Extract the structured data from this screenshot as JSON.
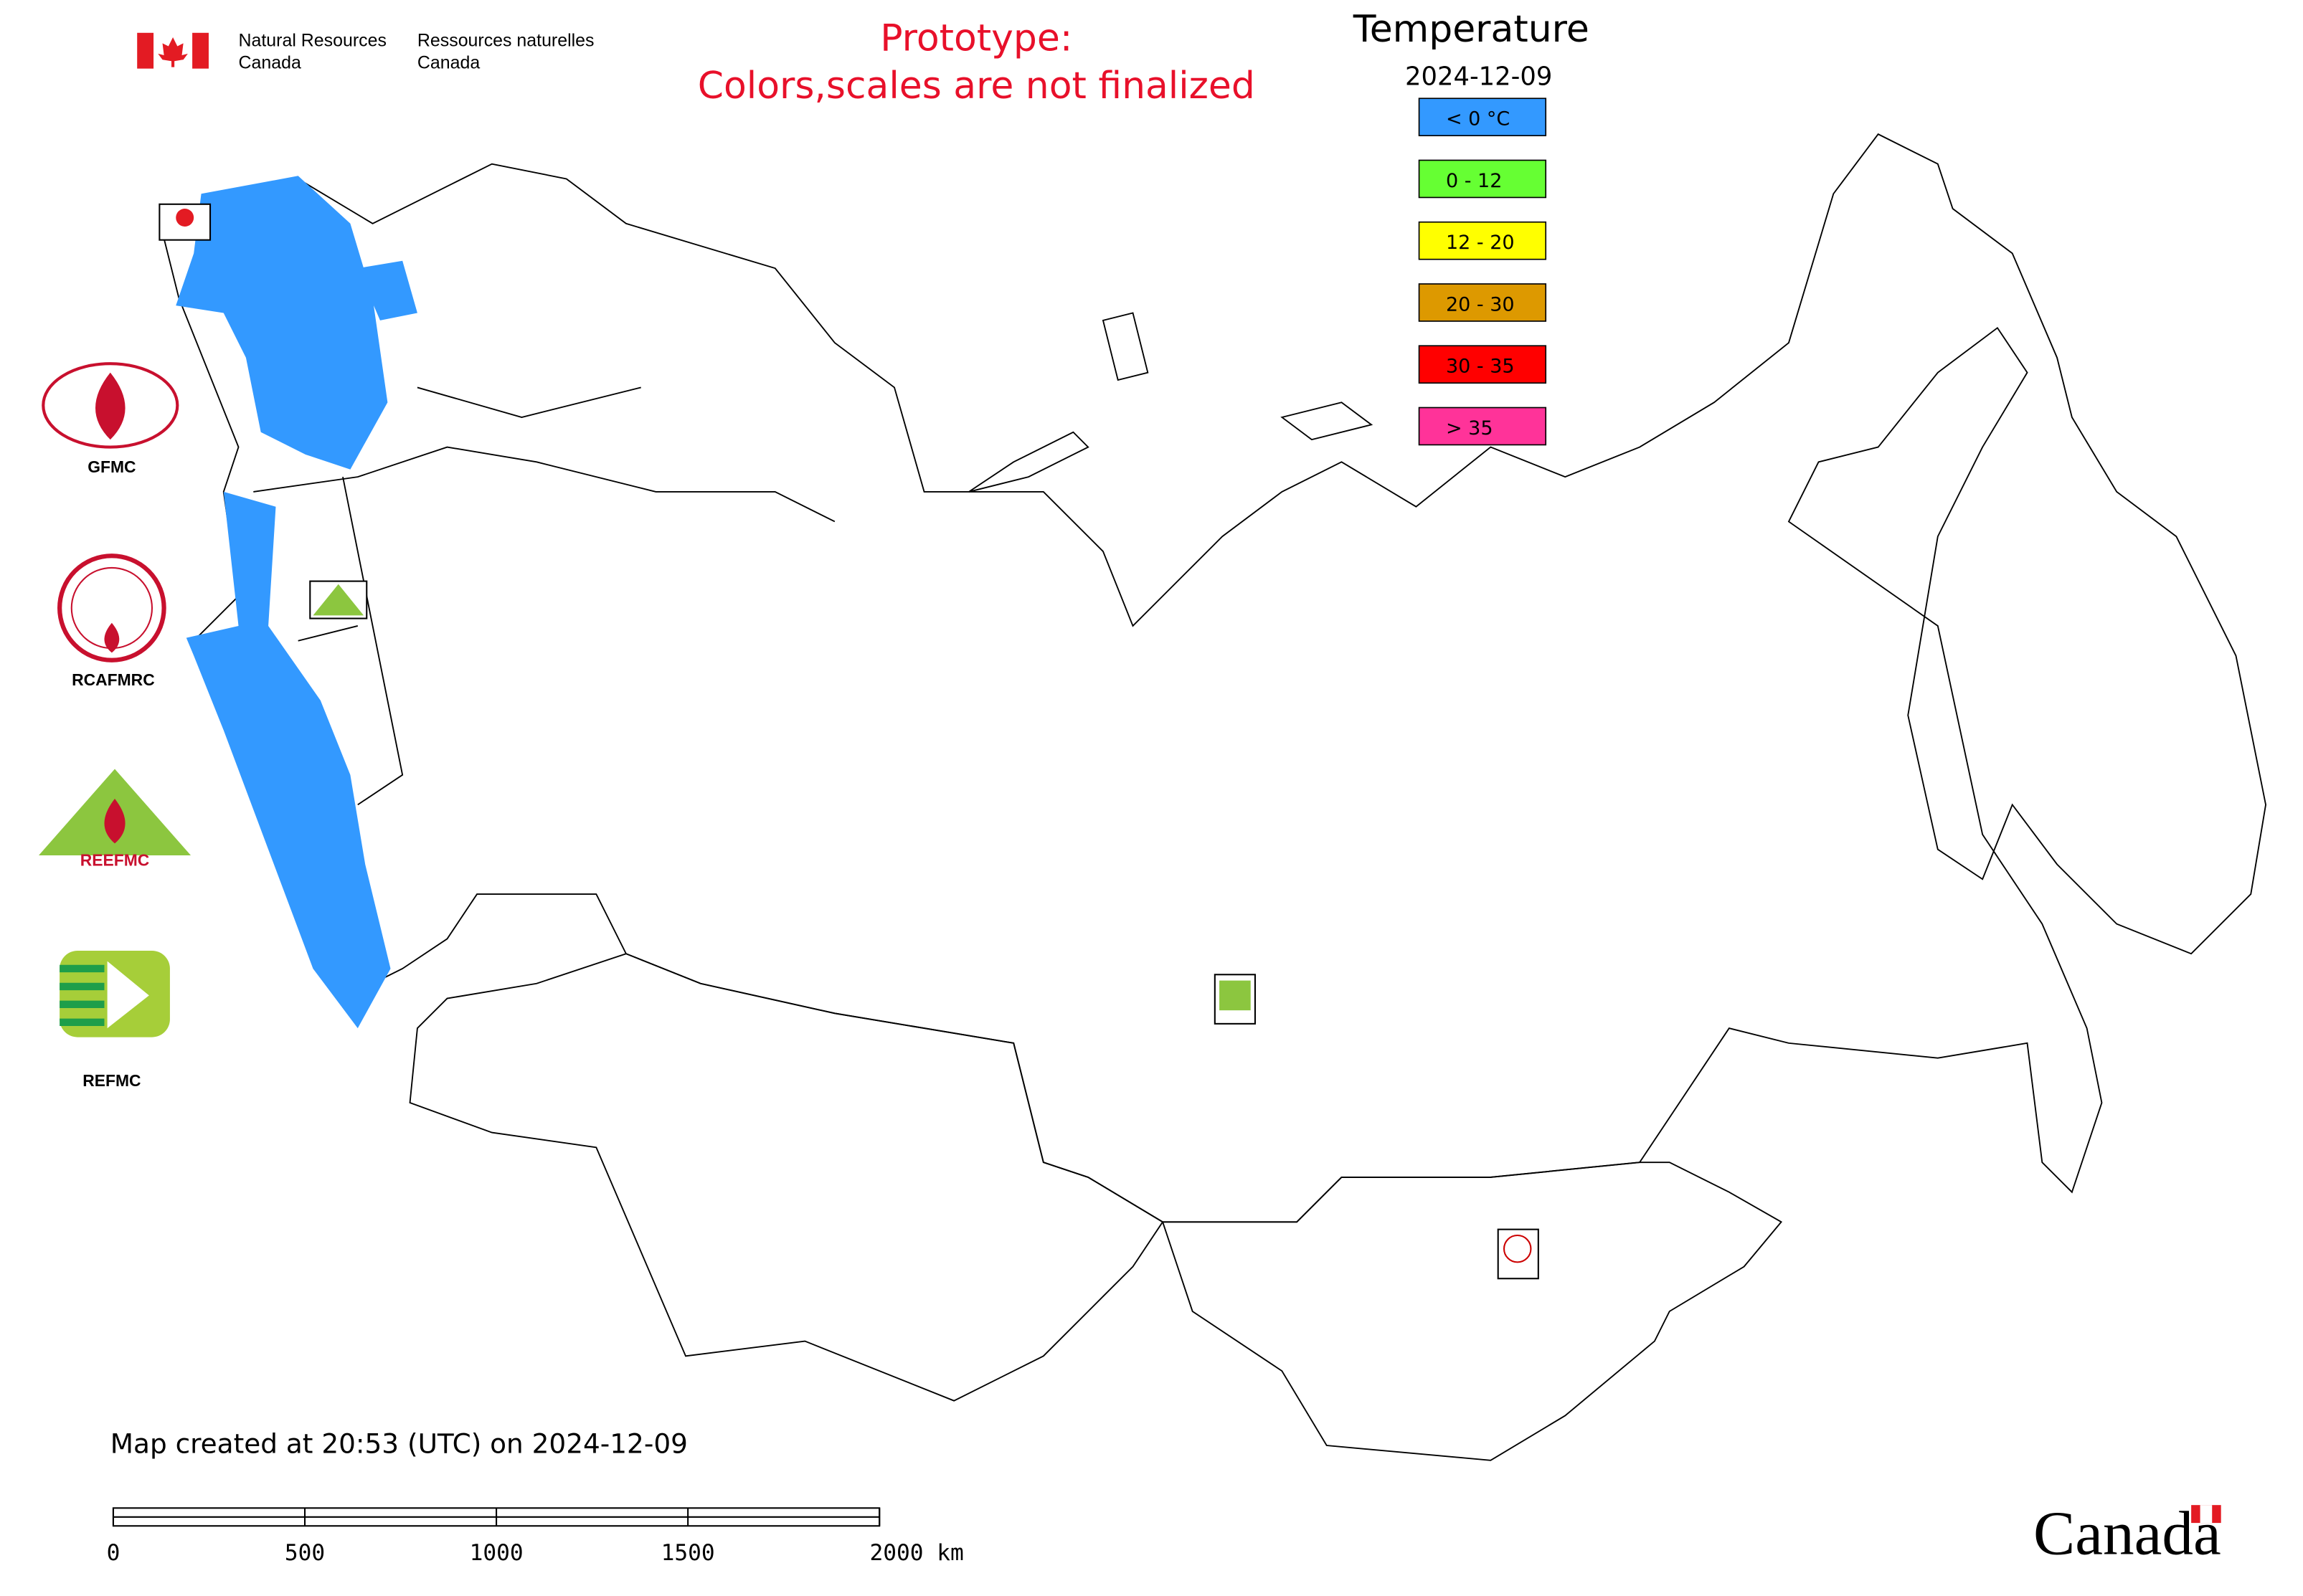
{
  "header": {
    "agency_en": [
      "Natural Resources",
      "Canada"
    ],
    "agency_fr": [
      "Ressources naturelles",
      "Canada"
    ]
  },
  "notice": [
    "Prototype:",
    "Colors,scales are not finalized"
  ],
  "legend": {
    "title": "Temperature",
    "date": "2024-12-09",
    "items": [
      {
        "label": "< 0 °C",
        "color": "#3399ff"
      },
      {
        "label": "0 - 12",
        "color": "#66ff33"
      },
      {
        "label": "12 - 20",
        "color": "#ffff00"
      },
      {
        "label": "20 - 30",
        "color": "#dd9900"
      },
      {
        "label": "30 - 35",
        "color": "#ff0000"
      },
      {
        "label": "> 35",
        "color": "#ff3399"
      }
    ]
  },
  "logos": [
    "GFMC",
    "RCAFMRC",
    "REEFMC",
    "REFMC"
  ],
  "footer": {
    "created": "Map created at 20:53 (UTC) on 2024-12-09",
    "scale_labels": [
      "0",
      "500",
      "1000",
      "1500",
      "2000 km"
    ],
    "wordmark": "Canada"
  }
}
